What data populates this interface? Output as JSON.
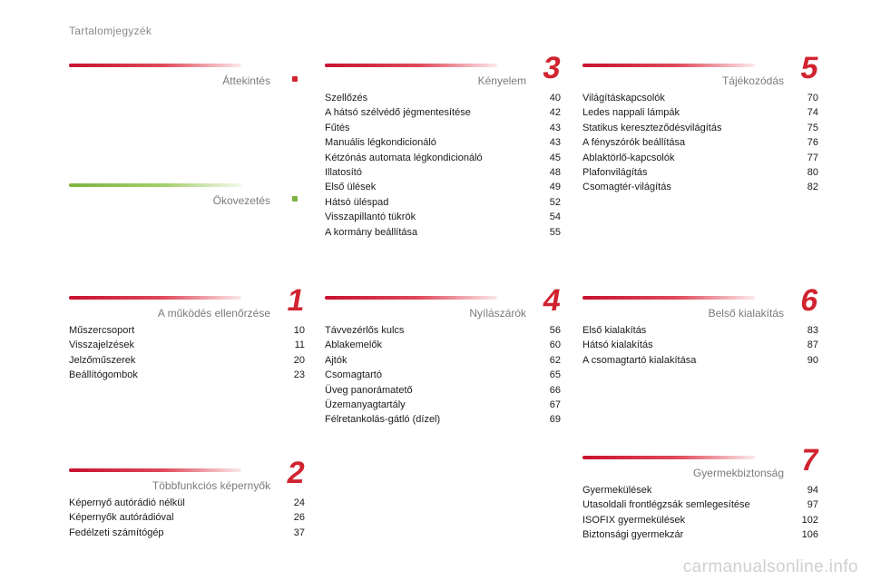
{
  "page_title": "Tartalomjegyzék",
  "watermark": "carmanualsonline.info",
  "colors": {
    "accent_red": "#d1232f",
    "accent_green": "#7cb342"
  },
  "sections": [
    {
      "title": "Áttekintés",
      "marker": ".",
      "color": "red",
      "entries": []
    },
    {
      "title": "Ökovezetés",
      "marker": ".",
      "color": "green",
      "entries": []
    },
    {
      "title": "A működés ellenőrzése",
      "marker": "1",
      "color": "red",
      "entries": [
        {
          "label": "Műszercsoport",
          "page": "10"
        },
        {
          "label": "Visszajelzések",
          "page": "11"
        },
        {
          "label": "Jelzőműszerek",
          "page": "20"
        },
        {
          "label": "Beállítógombok",
          "page": "23"
        }
      ]
    },
    {
      "title": "Többfunkciós képernyők",
      "marker": "2",
      "color": "red",
      "entries": [
        {
          "label": "Képernyő autórádió nélkül",
          "page": "24"
        },
        {
          "label": "Képernyők autórádióval",
          "page": "26"
        },
        {
          "label": "Fedélzeti számítógép",
          "page": "37"
        }
      ]
    },
    {
      "title": "Kényelem",
      "marker": "3",
      "color": "red",
      "entries": [
        {
          "label": "Szellőzés",
          "page": "40"
        },
        {
          "label": "A hátsó szélvédő jégmentesítése",
          "page": "42"
        },
        {
          "label": "Fűtés",
          "page": "43"
        },
        {
          "label": "Manuális légkondicionáló",
          "page": "43"
        },
        {
          "label": "Kétzónás automata légkondicionáló",
          "page": "45"
        },
        {
          "label": "Illatosító",
          "page": "48"
        },
        {
          "label": "Első ülések",
          "page": "49"
        },
        {
          "label": "Hátsó üléspad",
          "page": "52"
        },
        {
          "label": "Visszapillantó tükrök",
          "page": "54"
        },
        {
          "label": "A kormány beállítása",
          "page": "55"
        }
      ]
    },
    {
      "title": "Nyílászárók",
      "marker": "4",
      "color": "red",
      "entries": [
        {
          "label": "Távvezérlős kulcs",
          "page": "56"
        },
        {
          "label": "Ablakemelők",
          "page": "60"
        },
        {
          "label": "Ajtók",
          "page": "62"
        },
        {
          "label": "Csomagtartó",
          "page": "65"
        },
        {
          "label": "Üveg panorámatető",
          "page": "66"
        },
        {
          "label": "Üzemanyagtartály",
          "page": "67"
        },
        {
          "label": "Félretankolás-gátló (dízel)",
          "page": "69"
        }
      ]
    },
    {
      "title": "Tájékozódás",
      "marker": "5",
      "color": "red",
      "entries": [
        {
          "label": "Világításkapcsolók",
          "page": "70"
        },
        {
          "label": "Ledes nappali lámpák",
          "page": "74"
        },
        {
          "label": "Statikus kereszteződésvilágítás",
          "page": "75"
        },
        {
          "label": "A fényszórók beállítása",
          "page": "76"
        },
        {
          "label": "Ablaktörlő-kapcsolók",
          "page": "77"
        },
        {
          "label": "Plafonvilágítás",
          "page": "80"
        },
        {
          "label": "Csomagtér-világítás",
          "page": "82"
        }
      ]
    },
    {
      "title": "Belső kialakítás",
      "marker": "6",
      "color": "red",
      "entries": [
        {
          "label": "Első kialakítás",
          "page": "83"
        },
        {
          "label": "Hátsó kialakítás",
          "page": "87"
        },
        {
          "label": "A csomagtartó kialakítása",
          "page": "90"
        }
      ]
    },
    {
      "title": "Gyermekbiztonság",
      "marker": "7",
      "color": "red",
      "entries": [
        {
          "label": "Gyermekülések",
          "page": "94"
        },
        {
          "label": "Utasoldali frontlégzsák semlegesítése",
          "page": "97"
        },
        {
          "label": "ISOFIX gyermekülések",
          "page": "102"
        },
        {
          "label": "Biztonsági gyermekzár",
          "page": "106"
        }
      ]
    }
  ]
}
